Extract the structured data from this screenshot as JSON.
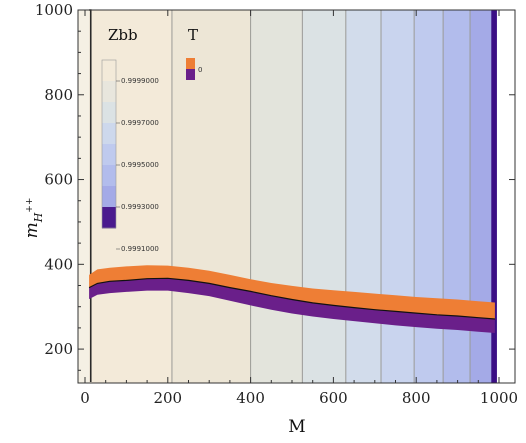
{
  "chart_data": {
    "type": "area",
    "xlabel": "M",
    "ylabel_base": "m",
    "ylabel_sub": "H",
    "ylabel_sup": "++",
    "xlim": [
      0,
      1000
    ],
    "ylim": [
      120,
      1000
    ],
    "x_ticks": [
      0,
      200,
      400,
      600,
      800,
      1000
    ],
    "y_ticks": [
      200,
      400,
      600,
      800,
      1000
    ],
    "background_bands": {
      "x_boundaries": [
        10,
        210,
        400,
        525,
        630,
        715,
        795,
        865,
        930,
        985,
        995
      ],
      "colors": [
        "#f3ead9",
        "#ede6d6",
        "#e3e4dc",
        "#dbe2e4",
        "#d2dceb",
        "#c9d4ee",
        "#bfcaee",
        "#b2bcec",
        "#a4aae7",
        "#3b0f85"
      ]
    },
    "legend_zbb": {
      "title": "Zbb",
      "labels": [
        "0.9999000",
        "0.9997000",
        "0.9995000",
        "0.9993000",
        "0.9991000"
      ],
      "colors": [
        "#f3ead9",
        "#e8e6dd",
        "#dbe2e4",
        "#cdd8ec",
        "#bfcaee",
        "#b2bcec",
        "#a4aae7",
        "#4a1a8e"
      ]
    },
    "legend_t": {
      "title": "T",
      "labels": [
        "0"
      ],
      "colors": [
        "#ee7e35",
        "#6a1f8a"
      ]
    },
    "series": [
      {
        "color": "#ee7e35",
        "x": [
          10,
          30,
          60,
          100,
          150,
          200,
          250,
          300,
          350,
          400,
          450,
          500,
          550,
          600,
          650,
          700,
          750,
          800,
          850,
          900,
          950,
          990
        ],
        "upper": [
          375,
          388,
          392,
          395,
          398,
          397,
          392,
          385,
          375,
          365,
          356,
          349,
          343,
          339,
          335,
          331,
          327,
          323,
          320,
          317,
          313,
          310
        ],
        "lower": [
          345,
          355,
          360,
          362,
          366,
          367,
          362,
          355,
          345,
          336,
          326,
          317,
          309,
          303,
          298,
          293,
          289,
          285,
          281,
          278,
          274,
          271
        ]
      },
      {
        "color": "#6a1f8a",
        "x": [
          10,
          30,
          60,
          100,
          150,
          200,
          250,
          300,
          350,
          400,
          450,
          500,
          550,
          600,
          650,
          700,
          750,
          800,
          850,
          900,
          950,
          990
        ],
        "upper": [
          345,
          355,
          360,
          362,
          366,
          367,
          362,
          355,
          345,
          336,
          326,
          317,
          309,
          303,
          298,
          293,
          289,
          285,
          281,
          278,
          274,
          271
        ],
        "lower": [
          318,
          328,
          332,
          335,
          338,
          338,
          332,
          325,
          314,
          303,
          293,
          284,
          277,
          271,
          266,
          261,
          256,
          252,
          248,
          245,
          241,
          238
        ]
      }
    ]
  }
}
